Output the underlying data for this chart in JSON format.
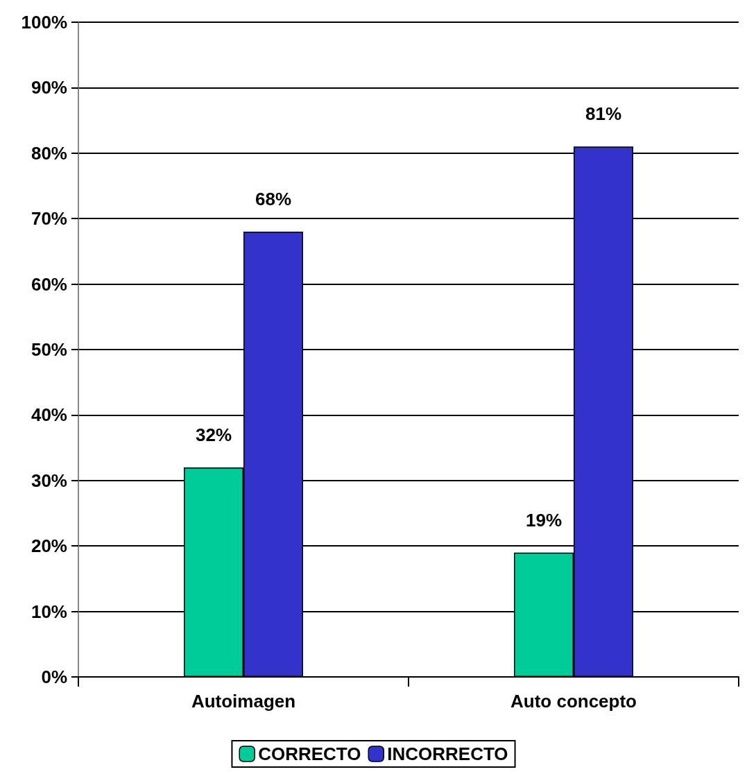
{
  "chart_data": {
    "type": "bar",
    "categories": [
      "Autoimagen",
      "Auto concepto"
    ],
    "series": [
      {
        "name": "CORRECTO",
        "color": "#00cc99",
        "values": [
          32,
          19
        ],
        "value_labels": [
          "32%",
          "19%"
        ]
      },
      {
        "name": "INCORRECTO",
        "color": "#3333cc",
        "values": [
          68,
          81
        ],
        "value_labels": [
          "68%",
          "81%"
        ]
      }
    ],
    "ylim": [
      0,
      100
    ],
    "yticks": [
      {
        "value": 0,
        "label": "0%"
      },
      {
        "value": 10,
        "label": "10%"
      },
      {
        "value": 20,
        "label": "20%"
      },
      {
        "value": 30,
        "label": "30%"
      },
      {
        "value": 40,
        "label": "40%"
      },
      {
        "value": 50,
        "label": "50%"
      },
      {
        "value": 60,
        "label": "60%"
      },
      {
        "value": 70,
        "label": "70%"
      },
      {
        "value": 80,
        "label": "80%"
      },
      {
        "value": 90,
        "label": "90%"
      },
      {
        "value": 100,
        "label": "100%"
      }
    ],
    "grid": "y",
    "legend": "bottom"
  }
}
